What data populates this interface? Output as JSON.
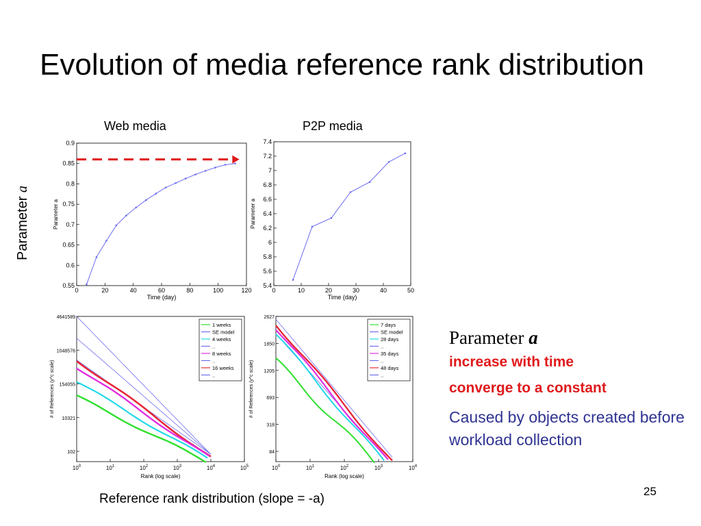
{
  "slide": {
    "title": "Evolution of media reference rank distribution",
    "web_title": "Web media",
    "p2p_title": "P2P media",
    "side_label": "Parameter ",
    "side_label_var": "a",
    "param_prefix": "Parameter ",
    "param_var": "a",
    "line1": "increase with time",
    "line2": "converge to a constant",
    "line3": "Caused by objects created before workload collection",
    "caption": "Reference rank distribution (slope = -a)",
    "page_number": "25"
  },
  "colors": {
    "red": "#e0191b",
    "blue": "#2f3393",
    "plot_line": "#6c6cf0"
  },
  "chart_data": [
    {
      "type": "line",
      "title": "Web media",
      "xlabel": "Time (day)",
      "ylabel": "Parameter a",
      "xlim": [
        0,
        120
      ],
      "ylim": [
        0.55,
        0.9
      ],
      "xticks": [
        0,
        20,
        40,
        60,
        80,
        100,
        120
      ],
      "yticks": [
        0.55,
        0.6,
        0.65,
        0.7,
        0.75,
        0.8,
        0.85,
        0.9
      ],
      "x": [
        7,
        14,
        21,
        28,
        35,
        42,
        49,
        56,
        63,
        70,
        77,
        84,
        91,
        98,
        105,
        112
      ],
      "y": [
        0.553,
        0.62,
        0.66,
        0.698,
        0.722,
        0.742,
        0.76,
        0.776,
        0.791,
        0.802,
        0.813,
        0.823,
        0.832,
        0.84,
        0.847,
        0.85
      ],
      "annotation": "red dashed arrow at y=0.86 pointing right"
    },
    {
      "type": "line",
      "title": "P2P media",
      "xlabel": "Time (day)",
      "ylabel": "Parameter a",
      "xlim": [
        0,
        50
      ],
      "ylim": [
        5.4,
        7.4
      ],
      "xticks": [
        0,
        10,
        20,
        30,
        40,
        50
      ],
      "yticks": [
        5.4,
        5.6,
        5.8,
        6,
        6.2,
        6.4,
        6.6,
        6.8,
        7,
        7.2,
        7.4
      ],
      "x": [
        7,
        14,
        21,
        28,
        35,
        42,
        48
      ],
      "y": [
        5.48,
        6.22,
        6.34,
        6.7,
        6.84,
        7.12,
        7.24
      ]
    },
    {
      "type": "line",
      "scale": "log-log",
      "xlabel": "Rank (log scale)",
      "ylabel": "# of References (y^c scale)",
      "ytick_labels": [
        "4641589",
        "1048576",
        "154055",
        "10321",
        "102"
      ],
      "xtick_exponents": [
        "0",
        "1",
        "2",
        "3",
        "4",
        "5"
      ],
      "legend": [
        "1 weeks",
        "SE model",
        "4 weeks",
        "..",
        "8 weeks",
        "..",
        "16 weeks",
        ".."
      ],
      "legend_colors": [
        "#2ee02e",
        "#6c6cf0",
        "#22d8e8",
        "#6c6cf0",
        "#e02ee0",
        "#6c6cf0",
        "#e8283a",
        "#6c6cf0"
      ],
      "legend_position": "top-right"
    },
    {
      "type": "line",
      "scale": "log-log",
      "xlabel": "Rank (log scale)",
      "ylabel": "# of References (y^c scale)",
      "ytick_labels": [
        "2627",
        "1850",
        "1205",
        "693",
        "318",
        "84"
      ],
      "xtick_exponents": [
        "0",
        "1",
        "2",
        "3",
        "4"
      ],
      "legend": [
        "7 days",
        "SE model",
        "28 days",
        "..",
        "35 days",
        "..",
        "48 days",
        ".."
      ],
      "legend_colors": [
        "#2ee02e",
        "#6c6cf0",
        "#22d8e8",
        "#6c6cf0",
        "#e02ee0",
        "#6c6cf0",
        "#e8283a",
        "#6c6cf0"
      ],
      "legend_position": "top-right"
    }
  ]
}
